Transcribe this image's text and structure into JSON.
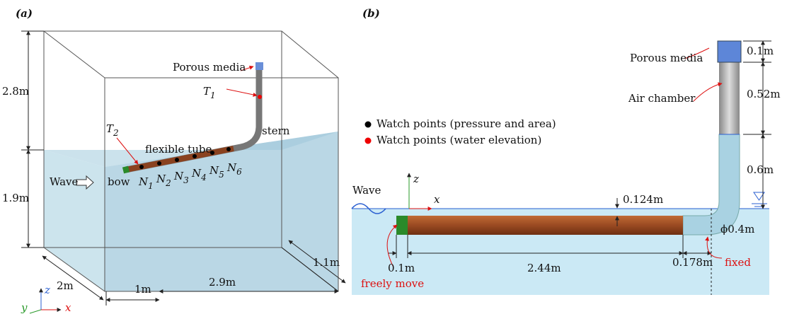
{
  "panel_a": {
    "label": "(a)",
    "dims": [
      "2.8m",
      "1.9m",
      "2m",
      "1m",
      "2.9m",
      "1.1m"
    ],
    "porous_media": "Porous media",
    "t1": {
      "main": "T",
      "sub": "1"
    },
    "t2": {
      "main": "T",
      "sub": "2"
    },
    "flexible_tube": "flexible tube",
    "stern": "stern",
    "wave": "Wave",
    "bow": "bow",
    "nodes": [
      {
        "main": "N",
        "sub": "1"
      },
      {
        "main": "N",
        "sub": "2"
      },
      {
        "main": "N",
        "sub": "3"
      },
      {
        "main": "N",
        "sub": "4"
      },
      {
        "main": "N",
        "sub": "5"
      },
      {
        "main": "N",
        "sub": "6"
      }
    ],
    "axes": [
      "y",
      "z",
      "x"
    ]
  },
  "panel_b": {
    "label": "(b)",
    "legend": [
      "Watch points (pressure and area)",
      "Watch points (water elevation)"
    ],
    "porous_media": "Porous media",
    "air_chamber": "Air chamber",
    "dims_right": [
      "0.1m",
      "0.52m",
      "0.6m"
    ],
    "wave": "Wave",
    "axes": [
      "z",
      "x"
    ],
    "gap": "0.124m",
    "diameter": "ϕ0.4m",
    "dims_bottom": [
      "0.1m",
      "2.44m",
      "0.178m"
    ],
    "freely_move": "freely move",
    "fixed": "fixed"
  }
}
